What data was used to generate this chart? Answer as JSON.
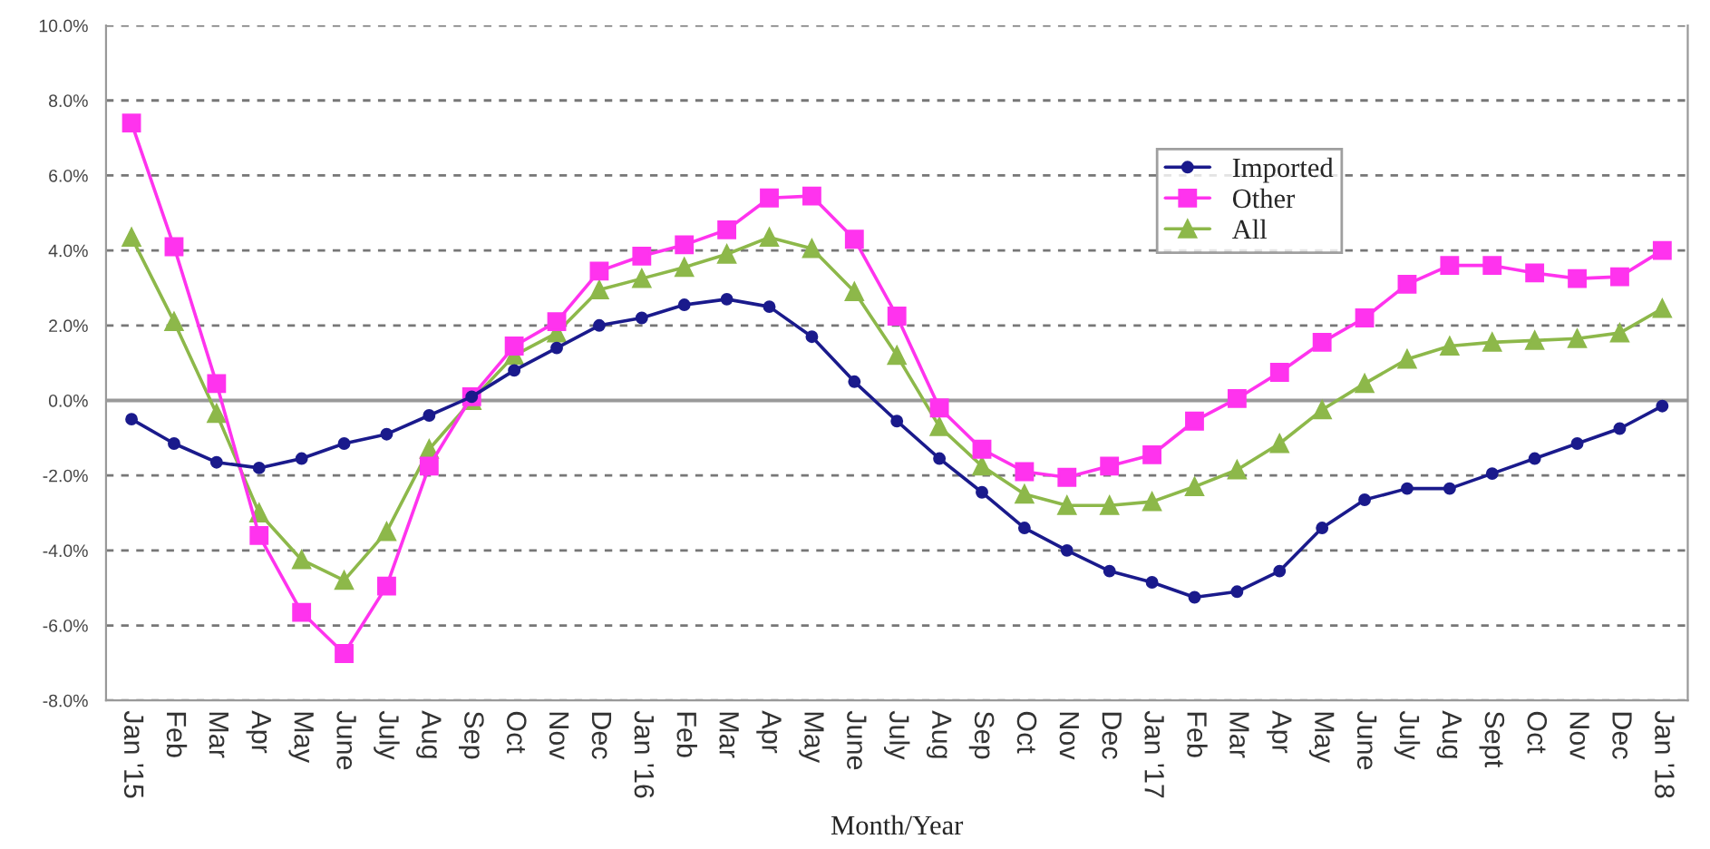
{
  "chart_data": {
    "type": "line",
    "xlabel": "Month/Year",
    "categories": [
      "Jan '15",
      "Feb",
      "Mar",
      "Apr",
      "May",
      "June",
      "July",
      "Aug",
      "Sep",
      "Oct",
      "Nov",
      "Dec",
      "Jan '16",
      "Feb",
      "Mar",
      "Apr",
      "May",
      "June",
      "July",
      "Aug",
      "Sep",
      "Oct",
      "Nov",
      "Dec",
      "Jan '17",
      "Feb",
      "Mar",
      "Apr",
      "May",
      "June",
      "July",
      "Aug",
      "Sept",
      "Oct",
      "Nov",
      "Dec",
      "Jan '18"
    ],
    "series": [
      {
        "name": "Imported",
        "color": "#1a1a8c",
        "marker": "circle",
        "values": [
          -0.5,
          -1.15,
          -1.65,
          -1.8,
          -1.55,
          -1.15,
          -0.9,
          -0.4,
          0.1,
          0.8,
          1.4,
          2.0,
          2.2,
          2.55,
          2.7,
          2.5,
          1.7,
          0.5,
          -0.55,
          -1.55,
          -2.45,
          -3.4,
          -4.0,
          -4.55,
          -4.85,
          -5.25,
          -5.1,
          -4.55,
          -3.4,
          -2.65,
          -2.35,
          -2.35,
          -1.95,
          -1.55,
          -1.15,
          -0.75,
          -0.15
        ]
      },
      {
        "name": "Other",
        "color": "#ff33ee",
        "marker": "square",
        "values": [
          7.4,
          4.1,
          0.45,
          -3.6,
          -5.65,
          -6.75,
          -4.95,
          -1.75,
          0.1,
          1.45,
          2.1,
          3.45,
          3.85,
          4.15,
          4.55,
          5.4,
          5.45,
          4.3,
          2.25,
          -0.2,
          -1.3,
          -1.9,
          -2.05,
          -1.75,
          -1.45,
          -0.55,
          0.05,
          0.75,
          1.55,
          2.2,
          3.1,
          3.6,
          3.6,
          3.4,
          3.25,
          3.3,
          4.0
        ]
      },
      {
        "name": "All",
        "color": "#8db84a",
        "marker": "triangle",
        "values": [
          4.35,
          2.1,
          -0.35,
          -3.0,
          -4.25,
          -4.8,
          -3.5,
          -1.3,
          0.0,
          1.2,
          1.8,
          2.95,
          3.25,
          3.55,
          3.9,
          4.35,
          4.05,
          2.9,
          1.2,
          -0.7,
          -1.75,
          -2.5,
          -2.8,
          -2.8,
          -2.7,
          -2.3,
          -1.85,
          -1.15,
          -0.25,
          0.45,
          1.1,
          1.45,
          1.55,
          1.6,
          1.65,
          1.8,
          2.45
        ]
      }
    ],
    "ylim": [
      -8,
      10
    ],
    "yticks": [
      {
        "value": -8,
        "label": "-8.0%"
      },
      {
        "value": -6,
        "label": "-6.0%"
      },
      {
        "value": -4,
        "label": "-4.0%"
      },
      {
        "value": -2,
        "label": "-2.0%"
      },
      {
        "value": 0,
        "label": "0.0%"
      },
      {
        "value": 2,
        "label": "2.0%"
      },
      {
        "value": 4,
        "label": "4.0%"
      },
      {
        "value": 6,
        "label": "6.0%"
      },
      {
        "value": 8,
        "label": "8.0%"
      },
      {
        "value": 10,
        "label": "10.0%"
      }
    ],
    "grid": "y",
    "legend": "right",
    "line_style": "solid"
  }
}
